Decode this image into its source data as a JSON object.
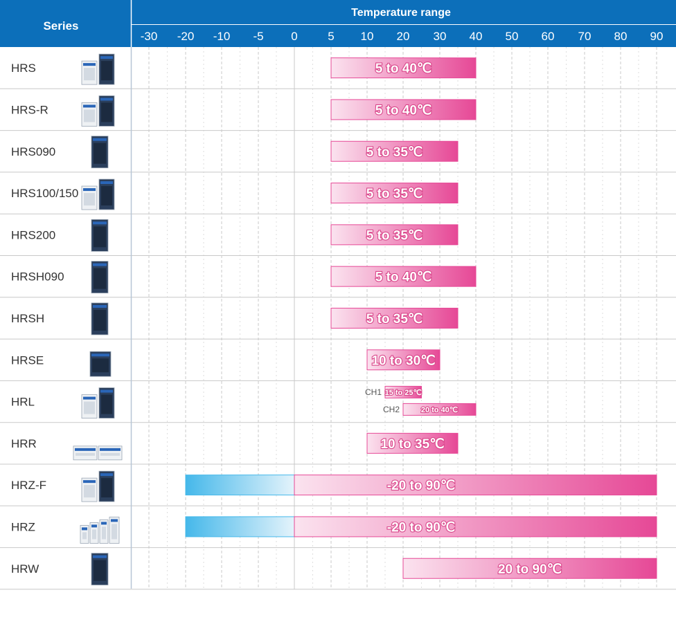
{
  "chart_data": {
    "type": "bar",
    "title": "",
    "header": {
      "series_label": "Series",
      "axis_title": "Temperature range"
    },
    "x_ticks": [
      -30,
      -20,
      -10,
      -5,
      0,
      5,
      10,
      20,
      30,
      40,
      50,
      60,
      70,
      80,
      90
    ],
    "rows": [
      {
        "name": "HRS",
        "icon": "chiller-pair-icon",
        "bars": [
          {
            "start": 5,
            "end": 40,
            "label": "5 to 40℃"
          }
        ]
      },
      {
        "name": "HRS-R",
        "icon": "chiller-pair-icon",
        "bars": [
          {
            "start": 5,
            "end": 40,
            "label": "5 to 40℃"
          }
        ]
      },
      {
        "name": "HRS090",
        "icon": "chiller-tower-icon",
        "bars": [
          {
            "start": 5,
            "end": 35,
            "label": "5 to 35℃"
          }
        ]
      },
      {
        "name": "HRS100/150",
        "icon": "chiller-pair-icon",
        "bars": [
          {
            "start": 5,
            "end": 35,
            "label": "5 to 35℃"
          }
        ]
      },
      {
        "name": "HRS200",
        "icon": "chiller-tower-icon",
        "bars": [
          {
            "start": 5,
            "end": 35,
            "label": "5 to 35℃"
          }
        ]
      },
      {
        "name": "HRSH090",
        "icon": "chiller-tower-icon",
        "bars": [
          {
            "start": 5,
            "end": 40,
            "label": "5 to 40℃"
          }
        ]
      },
      {
        "name": "HRSH",
        "icon": "chiller-tower-icon",
        "bars": [
          {
            "start": 5,
            "end": 35,
            "label": "5 to 35℃"
          }
        ]
      },
      {
        "name": "HRSE",
        "icon": "chiller-cube-icon",
        "bars": [
          {
            "start": 10,
            "end": 30,
            "label": "10 to 30℃"
          }
        ]
      },
      {
        "name": "HRL",
        "icon": "chiller-pair-icon",
        "bars": [
          {
            "channel": "CH1",
            "start": 15,
            "end": 25,
            "label": "15 to 25℃"
          },
          {
            "channel": "CH2",
            "start": 20,
            "end": 40,
            "label": "20 to 40℃"
          }
        ]
      },
      {
        "name": "HRR",
        "icon": "rack-chiller-icon",
        "bars": [
          {
            "start": 10,
            "end": 35,
            "label": "10 to 35℃"
          }
        ]
      },
      {
        "name": "HRZ-F",
        "icon": "chiller-pair-icon",
        "bars": [
          {
            "start": -20,
            "end": 90,
            "label": "-20 to 90℃"
          }
        ]
      },
      {
        "name": "HRZ",
        "icon": "chiller-group-icon",
        "bars": [
          {
            "start": -20,
            "end": 90,
            "label": "-20 to 90℃"
          }
        ]
      },
      {
        "name": "HRW",
        "icon": "chiller-tower-icon",
        "bars": [
          {
            "start": 20,
            "end": 90,
            "label": "20 to 90℃"
          }
        ]
      }
    ],
    "colors": {
      "header": "#0c6fba",
      "warm_light": "#fbe3ef",
      "warm_dark": "#e64896",
      "cold_light": "#dceffa",
      "cold_dark": "#45b8ea"
    }
  }
}
